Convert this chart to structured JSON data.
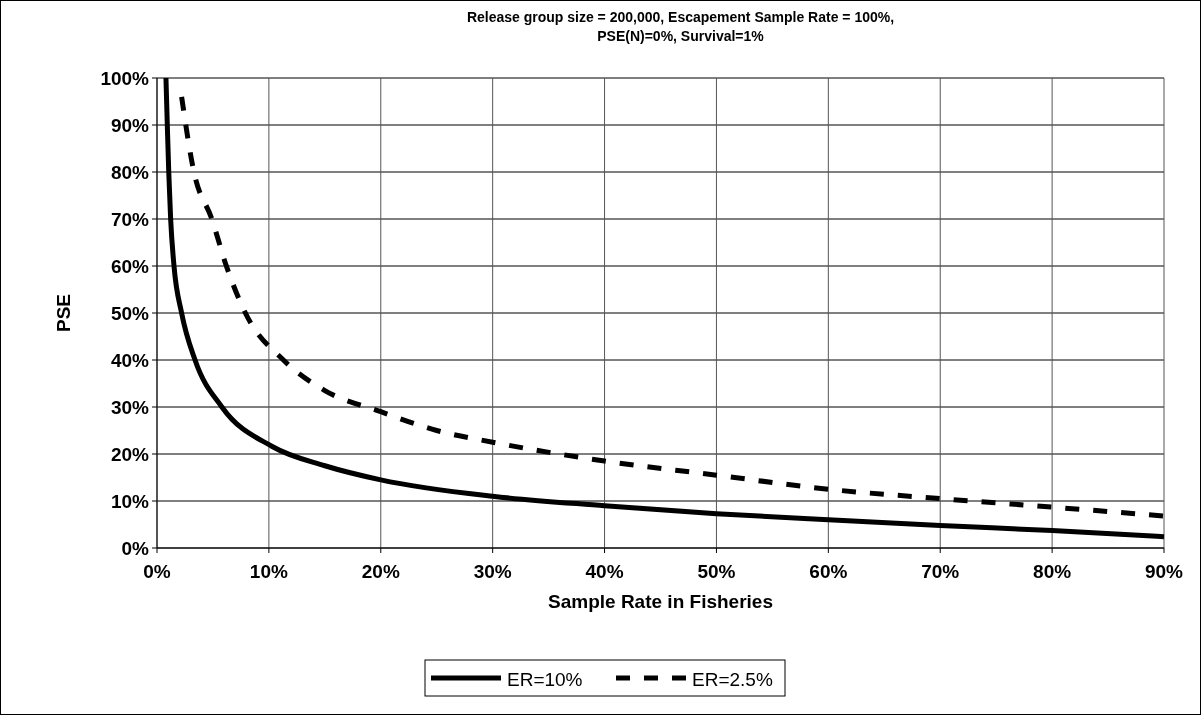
{
  "chart_data": {
    "type": "line",
    "title": "Release group size = 200,000, Escapement Sample Rate = 100%,\nPSE(N)=0%, Survival=1%",
    "xlabel": "Sample Rate in Fisheries",
    "ylabel": "PSE",
    "xlim": [
      0,
      90
    ],
    "xticks": [
      {
        "value": 0,
        "label": "0%"
      },
      {
        "value": 10,
        "label": "10%"
      },
      {
        "value": 20,
        "label": "20%"
      },
      {
        "value": 30,
        "label": "30%"
      },
      {
        "value": 40,
        "label": "40%"
      },
      {
        "value": 50,
        "label": "50%"
      },
      {
        "value": 60,
        "label": "60%"
      },
      {
        "value": 70,
        "label": "70%"
      },
      {
        "value": 80,
        "label": "80%"
      },
      {
        "value": 90,
        "label": "90%"
      }
    ],
    "ylim": [
      0,
      100
    ],
    "yticks": [
      {
        "value": 0,
        "label": "0%"
      },
      {
        "value": 10,
        "label": "10%"
      },
      {
        "value": 20,
        "label": "20%"
      },
      {
        "value": 30,
        "label": "30%"
      },
      {
        "value": 40,
        "label": "40%"
      },
      {
        "value": 50,
        "label": "50%"
      },
      {
        "value": 60,
        "label": "60%"
      },
      {
        "value": 70,
        "label": "70%"
      },
      {
        "value": 80,
        "label": "80%"
      },
      {
        "value": 90,
        "label": "90%"
      },
      {
        "value": 100,
        "label": "100%"
      }
    ],
    "grid": true,
    "legend": "bottom",
    "series": [
      {
        "name": "ER=10%",
        "color": "#000000",
        "line_style": "solid",
        "x": [
          0.8,
          0.92,
          1.05,
          1.22,
          1.52,
          2.2,
          3.4,
          5.8,
          10.3,
          15,
          20,
          30,
          40,
          50,
          60,
          70,
          80,
          90
        ],
        "values": [
          100,
          90,
          80,
          70,
          60,
          50,
          40,
          30,
          21.6,
          17.5,
          14.5,
          11,
          9,
          7.3,
          6,
          4.8,
          3.7,
          2.4
        ]
      },
      {
        "name": "ER=2.5%",
        "color": "#000000",
        "line_style": "dashed",
        "x": [
          2.2,
          3.3,
          4.9,
          6.2,
          7.9,
          11.3,
          15,
          20,
          25,
          30,
          40,
          50,
          60,
          70,
          80,
          90
        ],
        "values": [
          96,
          80,
          70,
          60,
          50,
          40,
          33.5,
          29,
          25,
          22.5,
          18.5,
          15.5,
          12.5,
          10.5,
          8.7,
          6.8
        ]
      }
    ]
  }
}
